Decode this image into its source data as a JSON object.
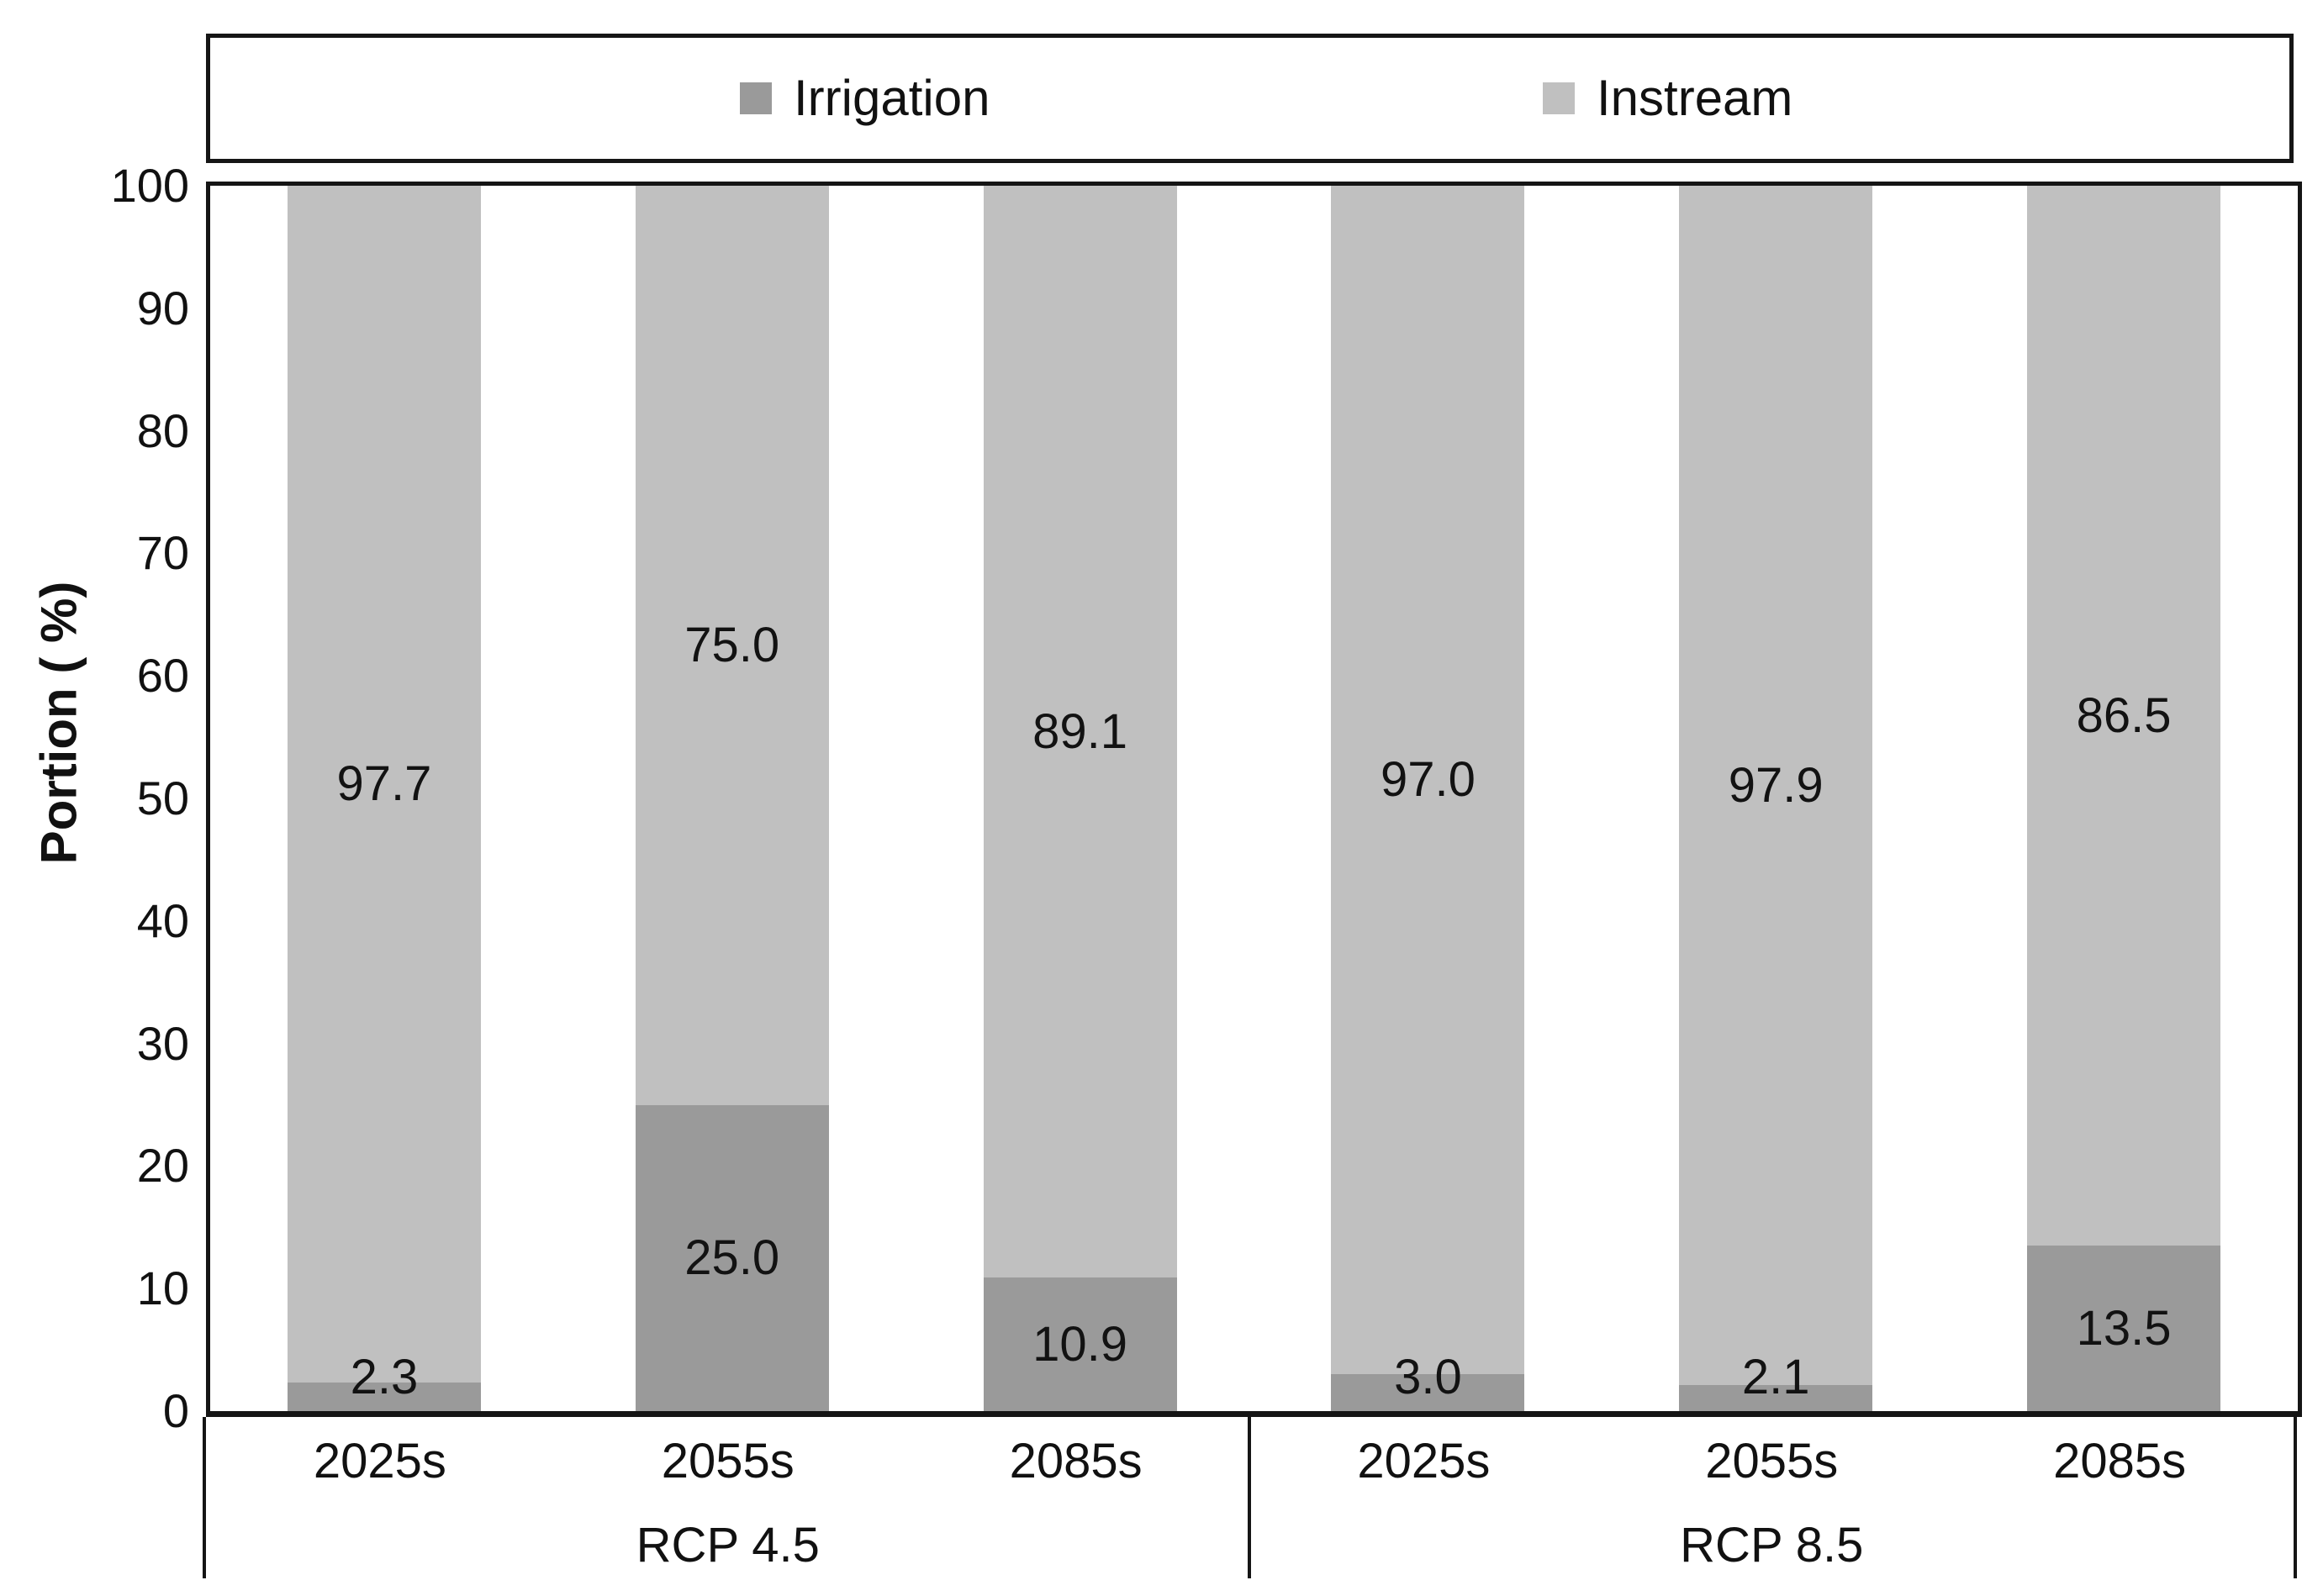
{
  "figure": {
    "background": "#ffffff",
    "frame_color": "#151515"
  },
  "legend": {
    "position": "top",
    "items": [
      {
        "label": "Irrigation",
        "color": "#9a9a9a"
      },
      {
        "label": "Instream",
        "color": "#c0c0c0"
      }
    ]
  },
  "chart_data": {
    "type": "bar",
    "stacked": true,
    "title": "",
    "xlabel": "",
    "ylabel": "Portion ( %)",
    "ylim": [
      0,
      100
    ],
    "yticks": [
      0,
      10,
      20,
      30,
      40,
      50,
      60,
      70,
      80,
      90,
      100
    ],
    "grid": false,
    "legend_position": "top",
    "groups": [
      {
        "label": "RCP 4.5",
        "categories": [
          "2025s",
          "2055s",
          "2085s"
        ]
      },
      {
        "label": "RCP 8.5",
        "categories": [
          "2025s",
          "2055s",
          "2085s"
        ]
      }
    ],
    "categories": [
      "2025s",
      "2055s",
      "2085s",
      "2025s",
      "2055s",
      "2085s"
    ],
    "series": [
      {
        "name": "Irrigation",
        "color": "#9a9a9a",
        "values": [
          2.3,
          25.0,
          10.9,
          3.0,
          2.1,
          13.5
        ]
      },
      {
        "name": "Instream",
        "color": "#c0c0c0",
        "values": [
          97.7,
          75.0,
          89.1,
          97.0,
          97.9,
          86.5
        ]
      }
    ],
    "bar_value_labels": {
      "Irrigation": [
        "2.3",
        "25.0",
        "10.9",
        "3.0",
        "2.1",
        "13.5"
      ],
      "Instream": [
        "97.7",
        "75.0",
        "89.1",
        "97.0",
        "97.9",
        "86.5"
      ]
    }
  }
}
